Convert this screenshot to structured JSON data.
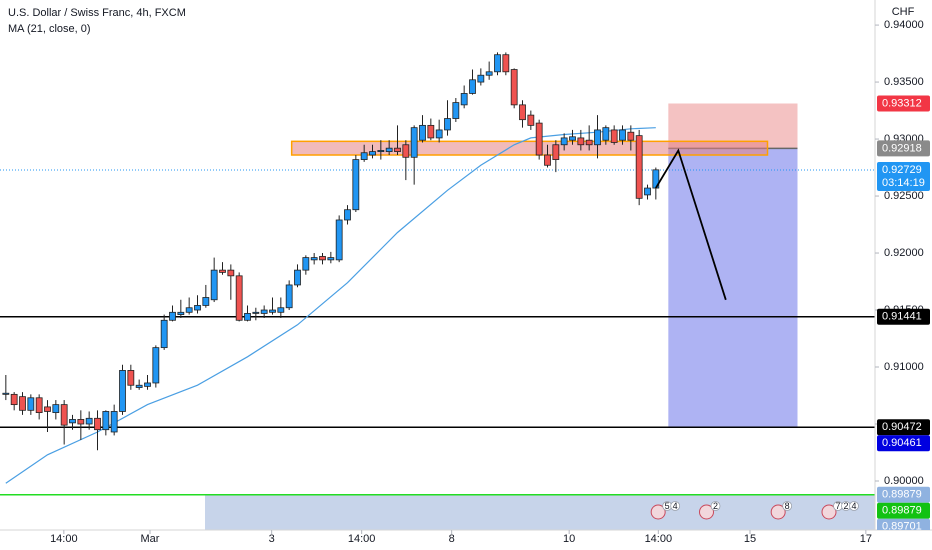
{
  "chart_data": {
    "type": "candlestick",
    "title": "U.S. Dollar / Swiss Franc, 4h, FXCM",
    "currency": "CHF",
    "xlim": [
      -0.7,
      104.3
    ],
    "xticks": [
      {
        "value": 6.96,
        "label": "14:00"
      },
      {
        "value": 17.3,
        "label": "Mar"
      },
      {
        "value": 31.9,
        "label": "3"
      },
      {
        "value": 42.7,
        "label": "14:00"
      },
      {
        "value": 53.5,
        "label": "8"
      },
      {
        "value": 67.6,
        "label": "10"
      },
      {
        "value": 78.3,
        "label": "14:00"
      },
      {
        "value": 89.3,
        "label": "15"
      },
      {
        "value": 103.2,
        "label": "17"
      }
    ],
    "ylim": [
      0.8957,
      0.9422
    ],
    "yticks": [
      {
        "value": 0.94,
        "label": "0.94000"
      },
      {
        "value": 0.935,
        "label": "0.93500"
      },
      {
        "value": 0.93,
        "label": "0.93000"
      },
      {
        "value": 0.925,
        "label": "0.92500"
      },
      {
        "value": 0.92,
        "label": "0.92000"
      },
      {
        "value": 0.915,
        "label": "0.91500"
      },
      {
        "value": 0.91,
        "label": "0.91000"
      },
      {
        "value": 0.905,
        "label": "0.90500"
      },
      {
        "value": 0.9,
        "label": "0.90000"
      }
    ],
    "up_color": "#2196f3",
    "down_color": "#ef5350",
    "open": [
      0.9076,
      0.9076,
      0.9074,
      0.9062,
      0.9073,
      0.9065,
      0.906,
      0.9067,
      0.9051,
      0.9054,
      0.905,
      0.9055,
      0.9045,
      0.9043,
      0.9061,
      0.9097,
      0.9082,
      0.9083,
      0.9086,
      0.9117,
      0.9141,
      0.9146,
      0.9148,
      0.915,
      0.9154,
      0.9159,
      0.9185,
      0.9185,
      0.918,
      0.9141,
      0.9147,
      0.9147,
      0.9148,
      0.9148,
      0.9152,
      0.9172,
      0.9185,
      0.9194,
      0.9197,
      0.9194,
      0.9194,
      0.9229,
      0.9238,
      0.9282,
      0.9286,
      0.9289,
      0.9289,
      0.9292,
      0.9295,
      0.9284,
      0.9299,
      0.9312,
      0.9301,
      0.9308,
      0.9318,
      0.933,
      0.934,
      0.935,
      0.9356,
      0.9359,
      0.9374,
      0.9361,
      0.933,
      0.9321,
      0.9314,
      0.9286,
      0.9295,
      0.9295,
      0.9299,
      0.9301,
      0.9299,
      0.9295,
      0.9299,
      0.9308,
      0.9299,
      0.9306,
      0.9303,
      0.9251,
      0.9257
    ],
    "high": [
      0.9093,
      0.9078,
      0.9078,
      0.9076,
      0.9076,
      0.9071,
      0.9071,
      0.9071,
      0.9058,
      0.9062,
      0.9061,
      0.9062,
      0.9062,
      0.9067,
      0.9102,
      0.9102,
      0.9089,
      0.9093,
      0.9119,
      0.9146,
      0.9154,
      0.9159,
      0.9161,
      0.9163,
      0.9172,
      0.9196,
      0.9192,
      0.919,
      0.9183,
      0.9154,
      0.9152,
      0.9154,
      0.9161,
      0.9161,
      0.9176,
      0.919,
      0.9198,
      0.92,
      0.92,
      0.9201,
      0.9233,
      0.9242,
      0.9286,
      0.9295,
      0.9295,
      0.9299,
      0.9299,
      0.9312,
      0.9299,
      0.9312,
      0.9321,
      0.9318,
      0.9317,
      0.9334,
      0.9336,
      0.9347,
      0.9361,
      0.9362,
      0.9368,
      0.9376,
      0.9376,
      0.9362,
      0.9334,
      0.9325,
      0.9317,
      0.9295,
      0.9299,
      0.9305,
      0.9308,
      0.9308,
      0.9312,
      0.9321,
      0.9312,
      0.9312,
      0.9312,
      0.9312,
      0.9308,
      0.926,
      0.9275
    ],
    "low": [
      0.9071,
      0.9062,
      0.9058,
      0.9058,
      0.9054,
      0.9043,
      0.9054,
      0.9032,
      0.9045,
      0.9036,
      0.9045,
      0.9027,
      0.904,
      0.904,
      0.9058,
      0.908,
      0.908,
      0.908,
      0.9082,
      0.9115,
      0.914,
      0.9143,
      0.9146,
      0.9147,
      0.9152,
      0.9157,
      0.9181,
      0.9159,
      0.914,
      0.914,
      0.9141,
      0.9143,
      0.9146,
      0.9143,
      0.915,
      0.917,
      0.9181,
      0.919,
      0.919,
      0.9191,
      0.9192,
      0.9225,
      0.9236,
      0.928,
      0.9283,
      0.9282,
      0.9286,
      0.9286,
      0.9264,
      0.926,
      0.9297,
      0.9299,
      0.9297,
      0.9303,
      0.9315,
      0.9327,
      0.9339,
      0.9347,
      0.9352,
      0.9356,
      0.9356,
      0.9327,
      0.931,
      0.9308,
      0.9282,
      0.9275,
      0.9271,
      0.929,
      0.9295,
      0.929,
      0.929,
      0.9283,
      0.9295,
      0.9295,
      0.9295,
      0.929,
      0.9242,
      0.9247,
      0.9247
    ],
    "close": [
      0.9077,
      0.9067,
      0.9062,
      0.9073,
      0.906,
      0.9061,
      0.9067,
      0.9049,
      0.9054,
      0.905,
      0.9055,
      0.9045,
      0.9061,
      0.9061,
      0.9097,
      0.9084,
      0.9084,
      0.9086,
      0.9117,
      0.9141,
      0.9148,
      0.9148,
      0.9152,
      0.9154,
      0.9161,
      0.9185,
      0.9183,
      0.918,
      0.9141,
      0.9147,
      0.9148,
      0.915,
      0.915,
      0.9152,
      0.9172,
      0.9185,
      0.9196,
      0.9196,
      0.9194,
      0.9196,
      0.9229,
      0.9238,
      0.9282,
      0.9288,
      0.9289,
      0.929,
      0.9292,
      0.9289,
      0.9284,
      0.931,
      0.9312,
      0.9301,
      0.9308,
      0.9318,
      0.9332,
      0.934,
      0.9352,
      0.9356,
      0.9359,
      0.9374,
      0.9359,
      0.933,
      0.9317,
      0.9312,
      0.9286,
      0.9277,
      0.9282,
      0.9301,
      0.9302,
      0.9295,
      0.9295,
      0.9308,
      0.931,
      0.9297,
      0.9308,
      0.9299,
      0.9248,
      0.9257,
      0.9273
    ],
    "ma": {
      "name": "MA (21, close, 0)",
      "color": "#4a9fe3",
      "x": [
        0,
        5,
        11,
        17,
        23,
        29,
        35,
        41,
        47,
        53,
        57,
        61,
        63,
        67,
        71,
        75,
        78
      ],
      "values": [
        0.8998,
        0.9023,
        0.9043,
        0.9067,
        0.9084,
        0.9109,
        0.9137,
        0.9174,
        0.9218,
        0.9255,
        0.9277,
        0.9295,
        0.9301,
        0.9304,
        0.9306,
        0.9309,
        0.931
      ]
    },
    "price_lines": [
      {
        "value": 0.91441,
        "color": "#000000"
      },
      {
        "value": 0.90472,
        "color": "#000000"
      },
      {
        "value": 0.89879,
        "color": "#22dd22"
      }
    ],
    "current_price": {
      "value": 0.92729,
      "countdown": "03:14:19",
      "color": "#2196f3"
    },
    "price_labels": [
      {
        "value": 0.93312,
        "color": "#f23645"
      },
      {
        "value": 0.92918,
        "color": "#8a8a8a"
      },
      {
        "value": 0.91441,
        "color": "#000000"
      },
      {
        "value": 0.90472,
        "color": "#000000"
      },
      {
        "value": 0.90461,
        "color": "#0000e0"
      },
      {
        "value": 0.89879,
        "color": "#8fb2e0"
      },
      {
        "value": 0.89879,
        "color": "#12c212"
      },
      {
        "value": 0.89701,
        "color": "#8fb2e0"
      }
    ],
    "zone": {
      "x": [
        34.3,
        91.4
      ],
      "values": [
        0.9298,
        0.9286
      ],
      "color": "#ffa000"
    },
    "position": {
      "x": [
        79.5,
        95.0
      ],
      "entry": 0.92918,
      "stop": 0.93312,
      "target": 0.90472
    },
    "drawing": {
      "x": [
        78,
        80.7,
        86.4
      ],
      "values": [
        0.9257,
        0.929,
        0.9159
      ]
    },
    "events": [
      {
        "x": 79.0,
        "counts": [
          5,
          4
        ]
      },
      {
        "x": 84.8,
        "counts": [
          2
        ]
      },
      {
        "x": 93.4,
        "counts": [
          8
        ]
      },
      {
        "x": 99.5,
        "counts": [
          7,
          2,
          4
        ]
      }
    ]
  }
}
